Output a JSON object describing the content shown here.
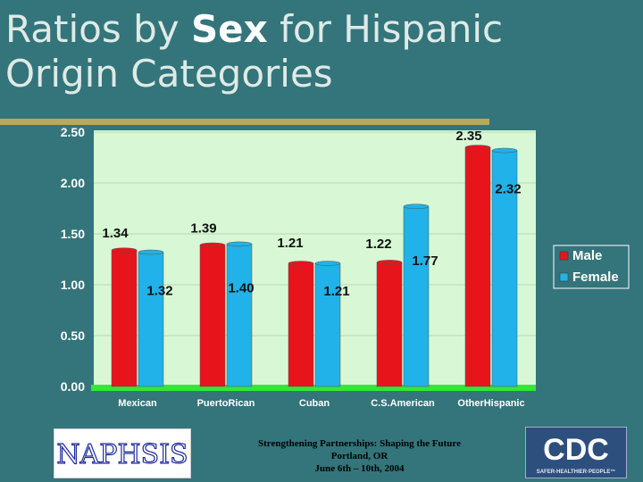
{
  "slide": {
    "title_prefix": "Ratios by ",
    "title_bold": "Sex",
    "title_suffix": " for Hispanic Origin Categories"
  },
  "chart_data": {
    "type": "bar",
    "categories": [
      "Mexican",
      "PuertoRican",
      "Cuban",
      "C.S.American",
      "OtherHispanic"
    ],
    "series": [
      {
        "name": "Male",
        "values": [
          1.34,
          1.39,
          1.21,
          1.22,
          2.35
        ],
        "color": "#e8141c"
      },
      {
        "name": "Female",
        "values": [
          1.32,
          1.4,
          1.21,
          1.77,
          2.32
        ],
        "color": "#20b2e8"
      }
    ],
    "data_labels": {
      "Male": [
        "1.34",
        "1.39",
        "1.21",
        "1.22",
        "2.35"
      ],
      "Female": [
        "1.32",
        "1.40",
        "1.21",
        "1.77",
        "2.32"
      ]
    },
    "yticks": [
      "0.00",
      "0.50",
      "1.00",
      "1.50",
      "2.00",
      "2.50"
    ],
    "ylim": [
      0,
      2.5
    ],
    "grid": true,
    "legend_position": "right",
    "plot_background": "#d8f7d4",
    "floor_color": "#33e833"
  },
  "footer": {
    "line1": "Strengthening Partnerships: Shaping the Future",
    "line2": "Portland, OR",
    "line3": "June 6th – 10th, 2004"
  },
  "logos": {
    "left": "NAPHSIS",
    "right": "CDC",
    "right_tagline": "SAFER·HEALTHIER·PEOPLE™"
  }
}
